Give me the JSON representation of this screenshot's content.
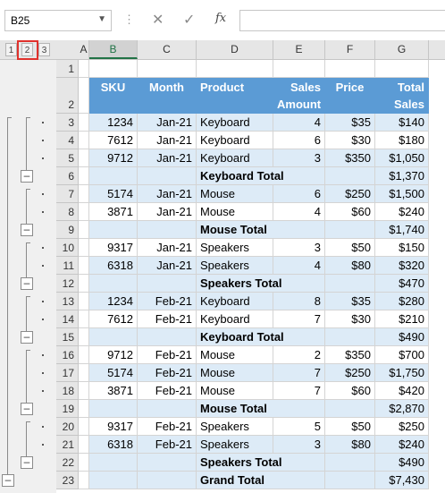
{
  "formula_bar": {
    "name_box": "B25",
    "cancel_icon": "✕",
    "enter_icon": "✓",
    "fx_label": "fx",
    "formula": ""
  },
  "outline_levels": [
    "1",
    "2",
    "3"
  ],
  "selected_level": "2",
  "columns": [
    "A",
    "B",
    "C",
    "D",
    "E",
    "F",
    "G"
  ],
  "selected_column": "B",
  "header": {
    "sku": "SKU",
    "month": "Month",
    "product": "Product",
    "sales_amount_1": "Sales",
    "sales_amount_2": "Amount",
    "price": "Price",
    "total_sales_1": "Total",
    "total_sales_2": "Sales"
  },
  "rows": [
    {
      "row": "3",
      "sku": "1234",
      "month": "Jan-21",
      "product": "Keyboard",
      "amount": "4",
      "price": "$35",
      "total": "$140"
    },
    {
      "row": "4",
      "sku": "7612",
      "month": "Jan-21",
      "product": "Keyboard",
      "amount": "6",
      "price": "$30",
      "total": "$180"
    },
    {
      "row": "5",
      "sku": "9712",
      "month": "Jan-21",
      "product": "Keyboard",
      "amount": "3",
      "price": "$350",
      "total": "$1,050"
    },
    {
      "row": "6",
      "subtotal": "Keyboard Total",
      "total": "$1,370"
    },
    {
      "row": "7",
      "sku": "5174",
      "month": "Jan-21",
      "product": "Mouse",
      "amount": "6",
      "price": "$250",
      "total": "$1,500"
    },
    {
      "row": "8",
      "sku": "3871",
      "month": "Jan-21",
      "product": "Mouse",
      "amount": "4",
      "price": "$60",
      "total": "$240"
    },
    {
      "row": "9",
      "subtotal": "Mouse Total",
      "total": "$1,740"
    },
    {
      "row": "10",
      "sku": "9317",
      "month": "Jan-21",
      "product": "Speakers",
      "amount": "3",
      "price": "$50",
      "total": "$150"
    },
    {
      "row": "11",
      "sku": "6318",
      "month": "Jan-21",
      "product": "Speakers",
      "amount": "4",
      "price": "$80",
      "total": "$320"
    },
    {
      "row": "12",
      "subtotal": "Speakers Total",
      "total": "$470"
    },
    {
      "row": "13",
      "sku": "1234",
      "month": "Feb-21",
      "product": "Keyboard",
      "amount": "8",
      "price": "$35",
      "total": "$280"
    },
    {
      "row": "14",
      "sku": "7612",
      "month": "Feb-21",
      "product": "Keyboard",
      "amount": "7",
      "price": "$30",
      "total": "$210"
    },
    {
      "row": "15",
      "subtotal": "Keyboard Total",
      "total": "$490"
    },
    {
      "row": "16",
      "sku": "9712",
      "month": "Feb-21",
      "product": "Mouse",
      "amount": "2",
      "price": "$350",
      "total": "$700"
    },
    {
      "row": "17",
      "sku": "5174",
      "month": "Feb-21",
      "product": "Mouse",
      "amount": "7",
      "price": "$250",
      "total": "$1,750"
    },
    {
      "row": "18",
      "sku": "3871",
      "month": "Feb-21",
      "product": "Mouse",
      "amount": "7",
      "price": "$60",
      "total": "$420"
    },
    {
      "row": "19",
      "subtotal": "Mouse Total",
      "total": "$2,870"
    },
    {
      "row": "20",
      "sku": "9317",
      "month": "Feb-21",
      "product": "Speakers",
      "amount": "5",
      "price": "$50",
      "total": "$250"
    },
    {
      "row": "21",
      "sku": "6318",
      "month": "Feb-21",
      "product": "Speakers",
      "amount": "3",
      "price": "$80",
      "total": "$240"
    },
    {
      "row": "22",
      "subtotal": "Speakers Total",
      "total": "$490"
    },
    {
      "row": "23",
      "subtotal": "Grand Total",
      "total": "$7,430"
    }
  ]
}
